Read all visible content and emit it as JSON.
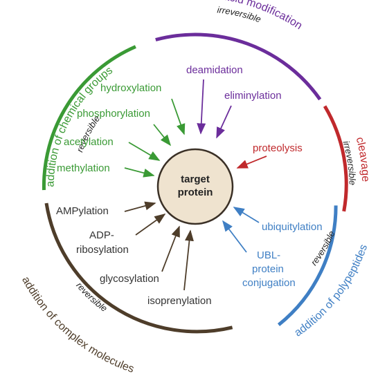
{
  "center": {
    "line1": "target",
    "line2": "protein"
  },
  "colors": {
    "green": "#3a9a35",
    "purple": "#6b2d9b",
    "red": "#c0292c",
    "blue": "#3f7fc4",
    "brown": "#4e3d2a",
    "center_fill": "#efe3cf"
  },
  "groups": {
    "chemical": {
      "title": "addition of chemical groups",
      "sub": "reversible"
    },
    "amino": {
      "title": "amino acid modification",
      "sub": "irreversible"
    },
    "cleavage": {
      "title": "cleavage",
      "sub": "irreversible"
    },
    "polypeptides": {
      "title": "addition of polypeptides",
      "sub": "reversible"
    },
    "complex": {
      "title": "addition of complex molecules",
      "sub": "reversible"
    }
  },
  "labels": {
    "hydroxylation": "hydroxylation",
    "phosphorylation": "phosphorylation",
    "acetylation": "acetylation",
    "methylation": "methylation",
    "deamidation": "deamidation",
    "eliminylation": "eliminylation",
    "proteolysis": "proteolysis",
    "ubiquitylation": "ubiquitylation",
    "ubl_1": "UBL-",
    "ubl_2": "protein",
    "ubl_3": "conjugation",
    "ampylation": "AMPylation",
    "adp_1": "ADP-",
    "adp_2": "ribosylation",
    "glycosylation": "glycosylation",
    "isoprenylation": "isoprenylation"
  }
}
